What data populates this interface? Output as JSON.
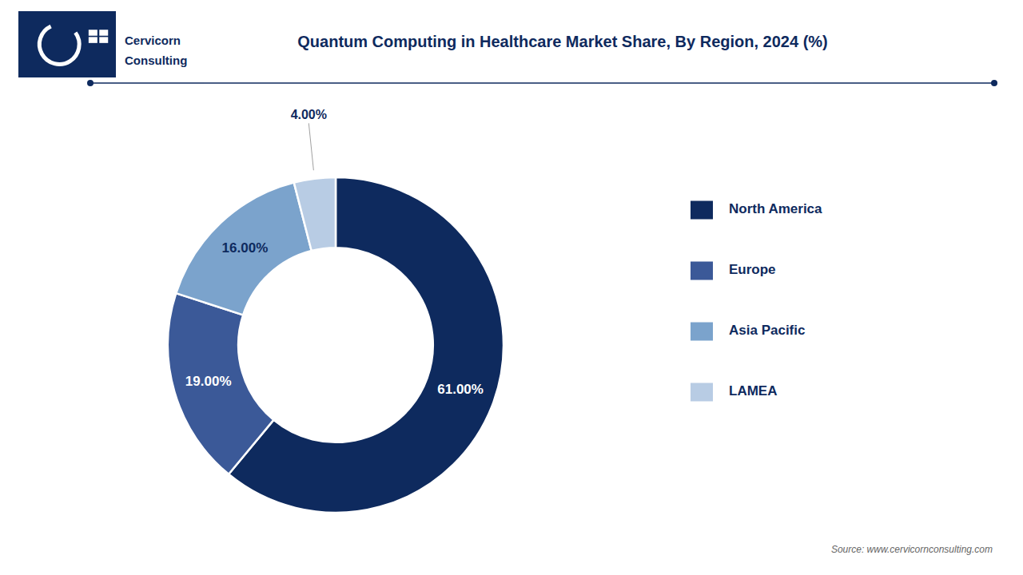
{
  "chart_data": {
    "type": "pie",
    "title": "Quantum Computing in Healthcare Market Share, By Region, 2024 (%)",
    "categories": [
      "North America",
      "Europe",
      "Asia Pacific",
      "LAMEA"
    ],
    "values": [
      61.0,
      19.0,
      16.0,
      4.0
    ],
    "value_labels": [
      "61.00%",
      "19.00%",
      "16.00%",
      "4.00%"
    ],
    "colors": [
      "#0e2a5e",
      "#3b5998",
      "#7ba3cc",
      "#b8cce4"
    ],
    "data_labels": true,
    "legend": "right",
    "annotations": [
      "Source: www.cervicornconsulting.com",
      "Cervicorn",
      "Consulting"
    ]
  }
}
